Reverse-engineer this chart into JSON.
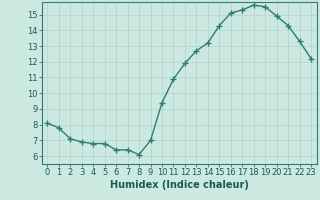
{
  "x": [
    0,
    1,
    2,
    3,
    4,
    5,
    6,
    7,
    8,
    9,
    10,
    11,
    12,
    13,
    14,
    15,
    16,
    17,
    18,
    19,
    20,
    21,
    22,
    23
  ],
  "y": [
    8.1,
    7.8,
    7.1,
    6.9,
    6.8,
    6.8,
    6.4,
    6.4,
    6.1,
    7.0,
    9.4,
    10.9,
    11.9,
    12.7,
    13.2,
    14.3,
    15.1,
    15.3,
    15.6,
    15.5,
    14.9,
    14.3,
    13.3,
    12.2
  ],
  "line_color": "#2e7d6e",
  "marker": "+",
  "marker_size": 4,
  "marker_lw": 1.0,
  "bg_color": "#cce9e1",
  "grid_color": "#b0d4cc",
  "xlabel": "Humidex (Indice chaleur)",
  "xlim": [
    -0.5,
    23.5
  ],
  "ylim": [
    5.5,
    15.8
  ],
  "yticks": [
    6,
    7,
    8,
    9,
    10,
    11,
    12,
    13,
    14,
    15
  ],
  "xticks": [
    0,
    1,
    2,
    3,
    4,
    5,
    6,
    7,
    8,
    9,
    10,
    11,
    12,
    13,
    14,
    15,
    16,
    17,
    18,
    19,
    20,
    21,
    22,
    23
  ],
  "xlabel_fontsize": 7,
  "tick_fontsize": 6,
  "line_width": 1.0
}
